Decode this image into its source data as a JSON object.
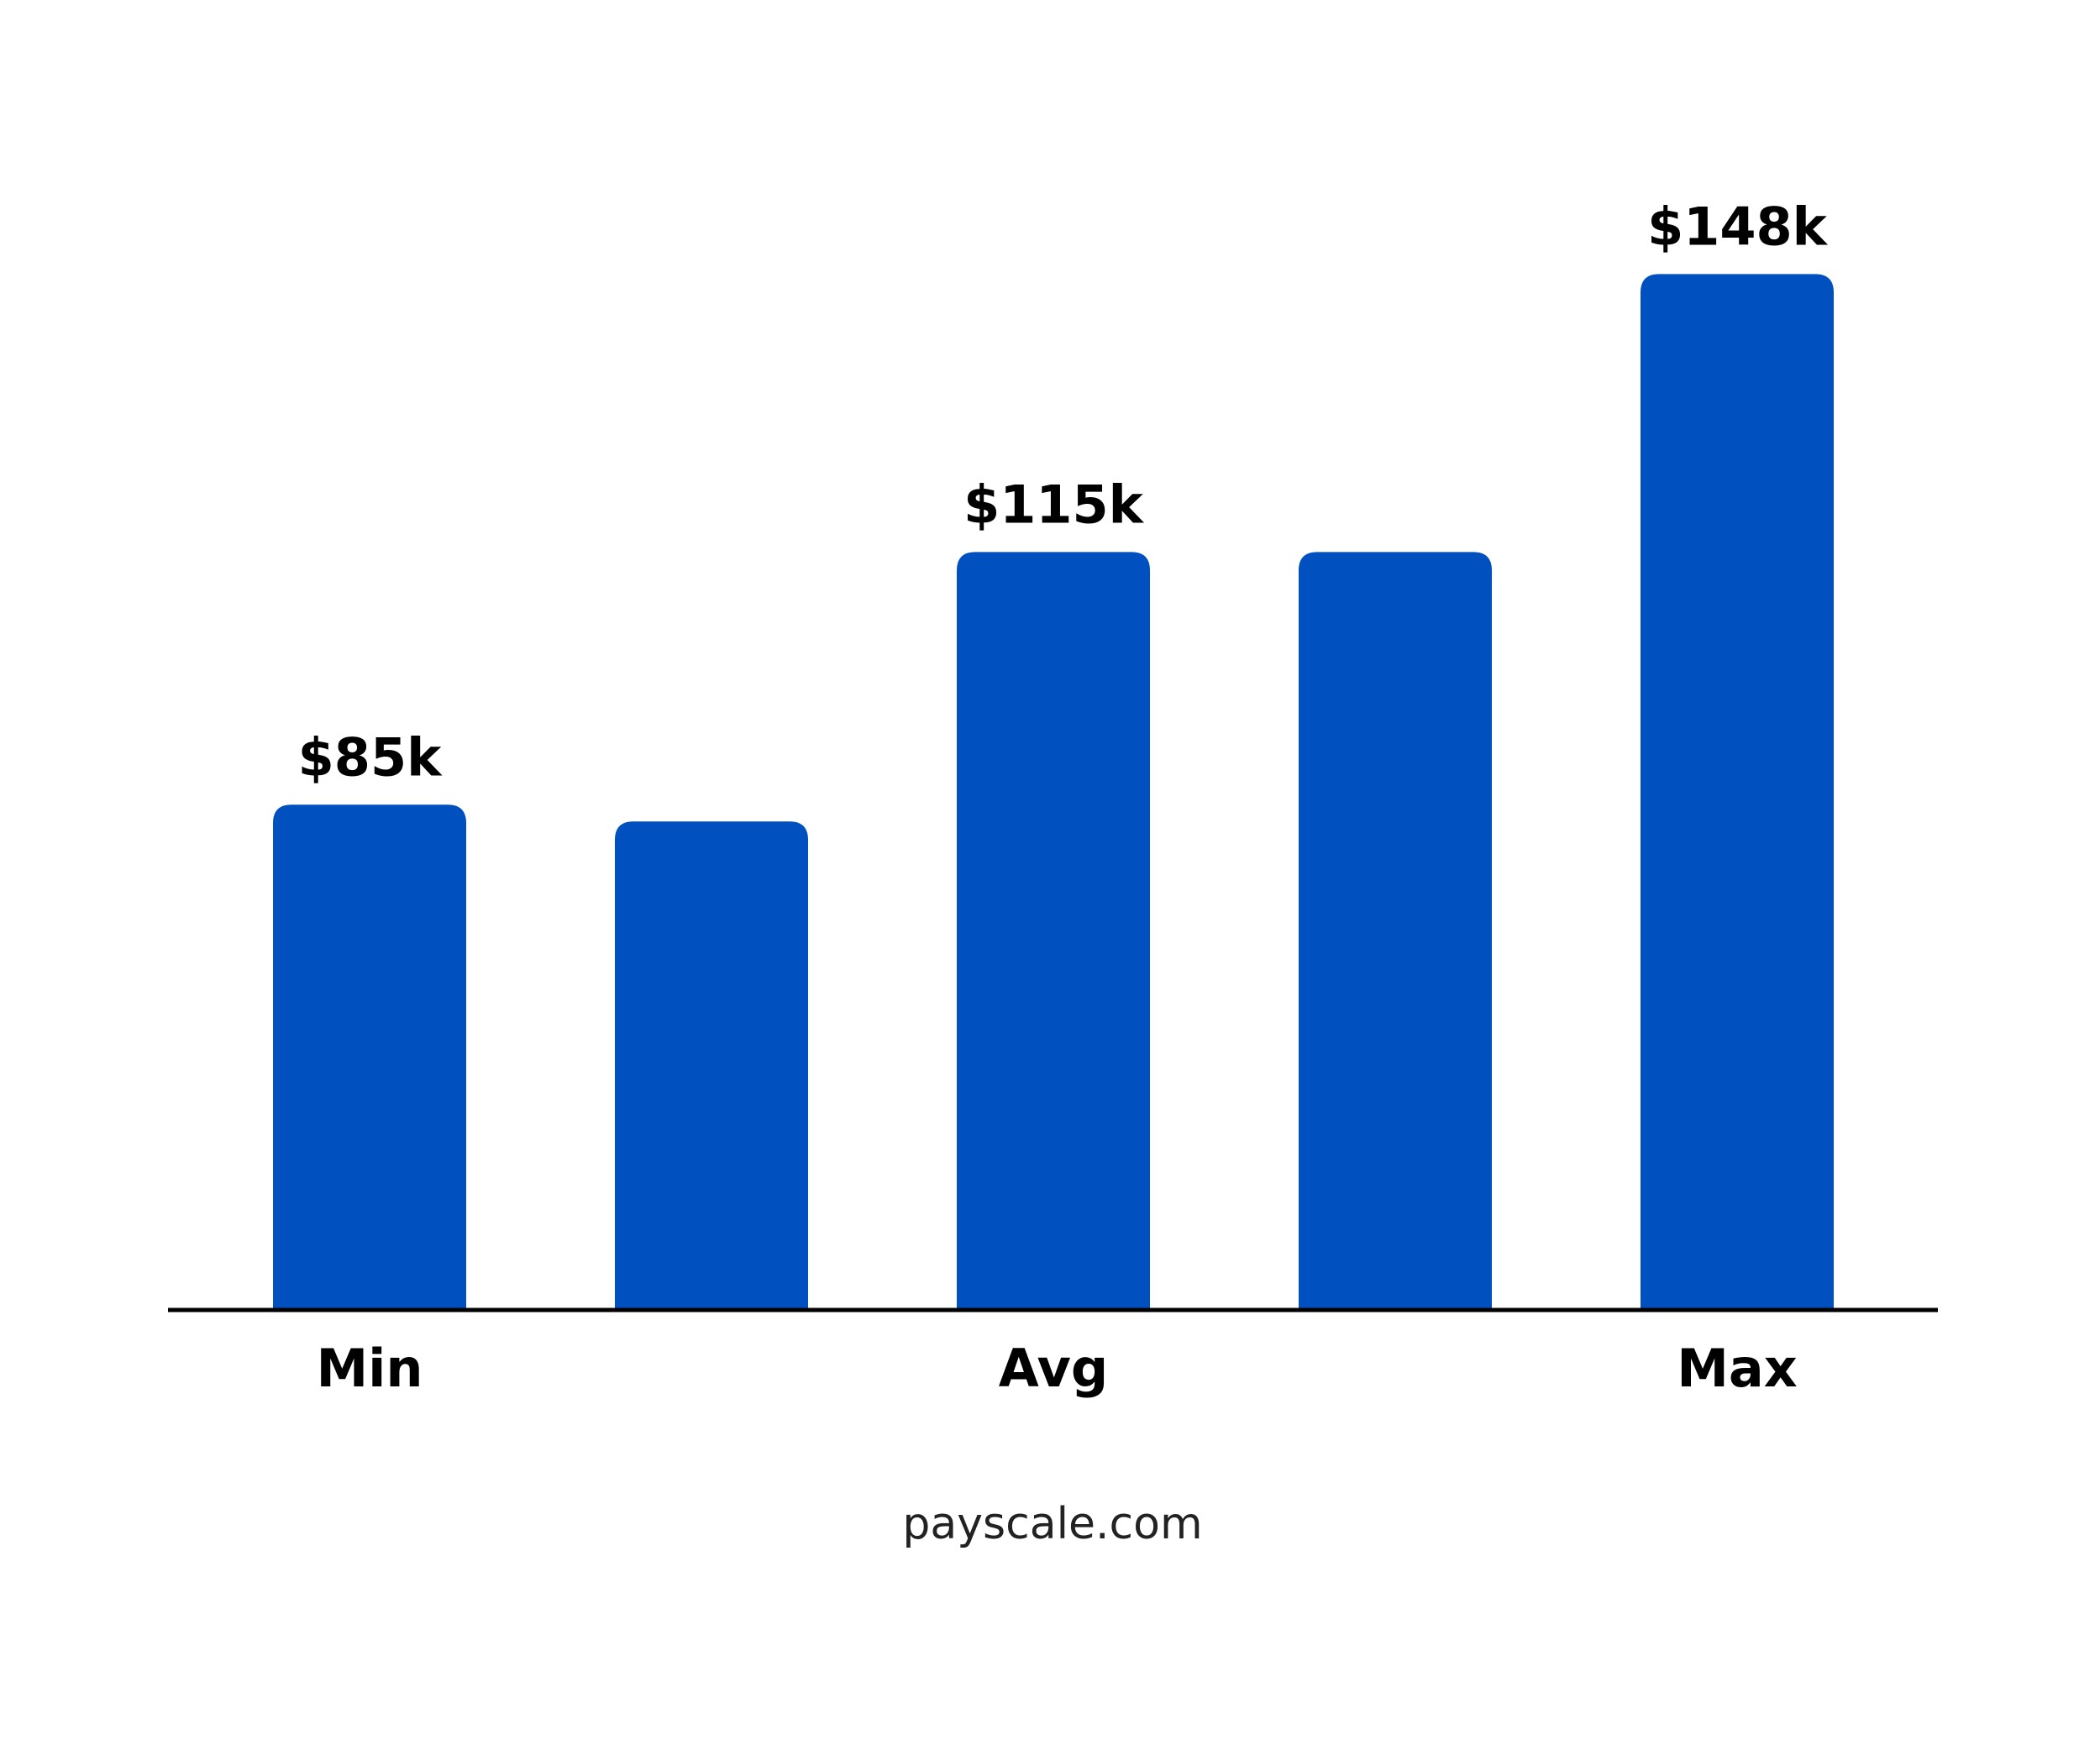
{
  "chart_data": {
    "type": "bar",
    "categories": [
      "Min",
      null,
      "Avg",
      null,
      "Max"
    ],
    "values": [
      85,
      83,
      115,
      115,
      148
    ],
    "value_labels": [
      "$85k",
      null,
      "$115k",
      null,
      "$148k"
    ],
    "color": "#0050c0",
    "ylim": [
      25,
      160
    ],
    "footer": "payscale.com"
  }
}
